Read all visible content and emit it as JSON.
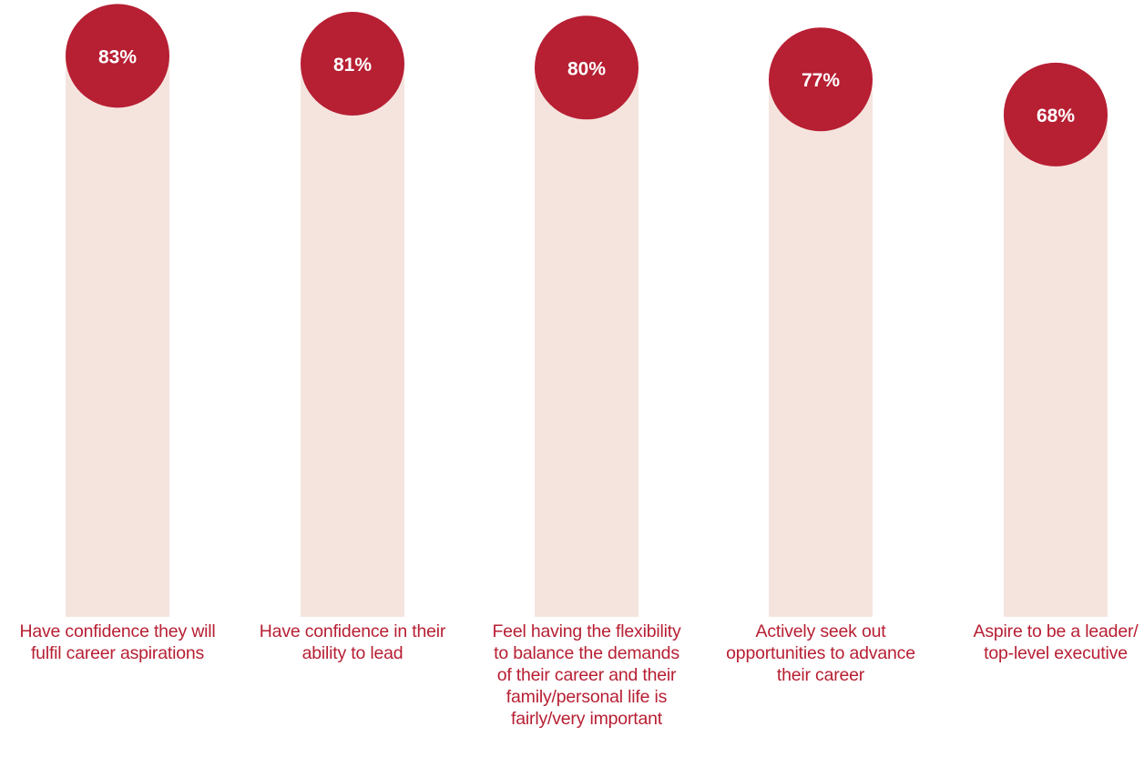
{
  "chart_data": {
    "type": "bar",
    "categories": [
      "Have confidence they will fulfil career aspirations",
      "Have confidence in their ability to lead",
      "Feel having the flexibility to balance the demands of their career and their family/personal life is fairly/very important",
      "Actively seek out opportunities to advance their career",
      "Aspire to be a leader/ top-level executive"
    ],
    "category_lines": [
      [
        "Have confidence they will",
        "fulfil career aspirations"
      ],
      [
        "Have confidence in their",
        "ability to lead"
      ],
      [
        "Feel having the flexibility",
        "to balance the demands",
        "of their career and their",
        "family/personal life is",
        "fairly/very important"
      ],
      [
        "Actively seek out",
        "opportunities to advance",
        "their career"
      ],
      [
        "Aspire to be a leader/",
        "top-level executive"
      ]
    ],
    "values": [
      83,
      81,
      80,
      77,
      68
    ],
    "value_labels": [
      "83%",
      "81%",
      "80%",
      "77%",
      "68%"
    ],
    "ylim": [
      0,
      100
    ],
    "grid": false,
    "legend": "none",
    "colors": {
      "bar": "#f5e4de",
      "marker": "#b71f33",
      "marker_text": "#ffffff",
      "label": "#b71f33"
    }
  }
}
